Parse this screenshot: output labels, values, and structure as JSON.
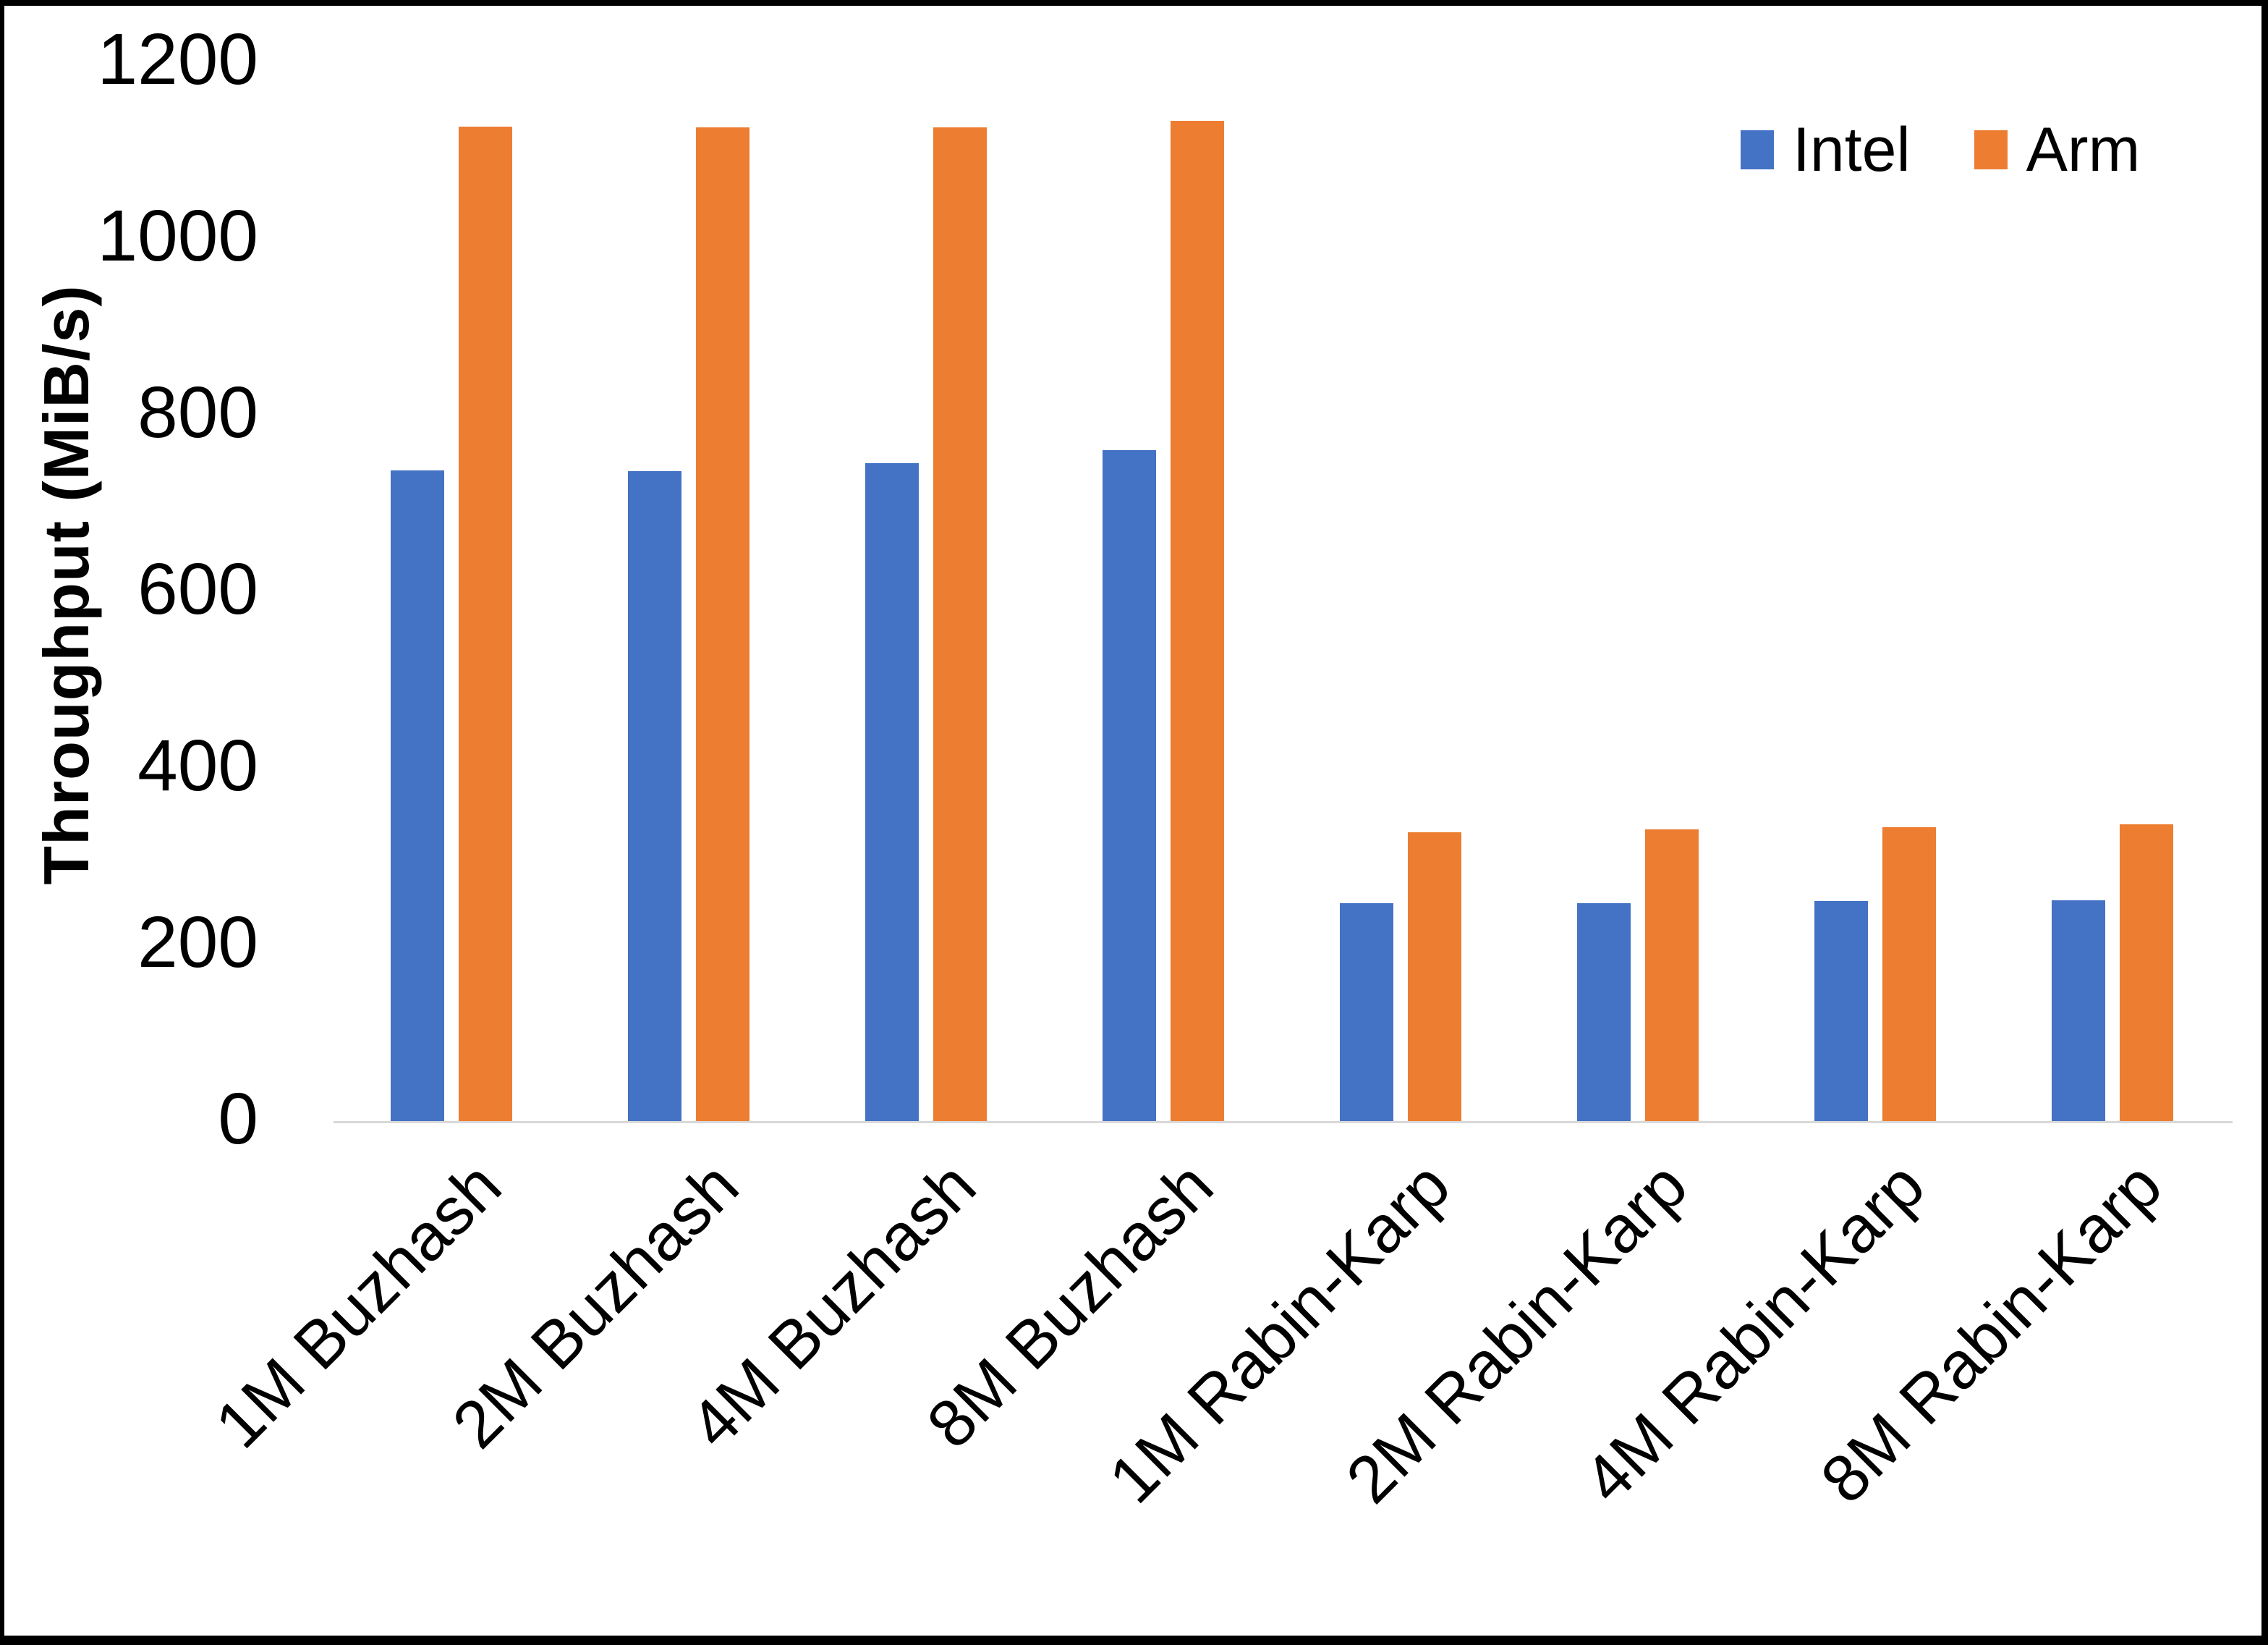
{
  "chart_data": {
    "type": "bar",
    "title": "",
    "xlabel": "",
    "ylabel": "Throughput (MiB/s)",
    "ylim": [
      0,
      1200
    ],
    "yticks": [
      0,
      200,
      400,
      600,
      800,
      1000,
      1200
    ],
    "grid": false,
    "legend_position": "top-right",
    "categories": [
      "1M Buzhash",
      "2M Buzhash",
      "4M Buzhash",
      "8M Buzhash",
      "1M Rabin-Karp",
      "2M Rabin-Karp",
      "4M Rabin-Karp",
      "8M Rabin-Karp"
    ],
    "series": [
      {
        "name": "Intel",
        "color": "#4472C4",
        "values": [
          737,
          736,
          745,
          760,
          247,
          247,
          249,
          250
        ]
      },
      {
        "name": "Arm",
        "color": "#ED7D31",
        "values": [
          1126,
          1125,
          1125,
          1133,
          327,
          330,
          333,
          336
        ]
      }
    ]
  },
  "colors": {
    "axis_line": "#d9d9d9",
    "text": "#000000",
    "frame": "#000000",
    "background": "#ffffff"
  }
}
